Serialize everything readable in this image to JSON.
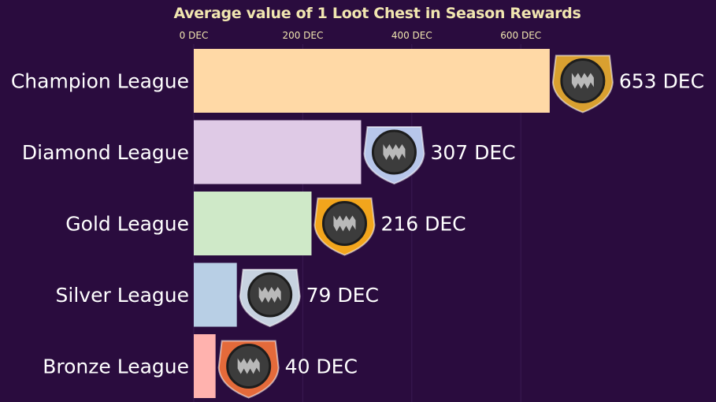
{
  "chart_data": {
    "type": "bar",
    "orientation": "horizontal",
    "title": "Average value of 1 Loot Chest in Season Rewards",
    "xlabel": "",
    "ylabel": "",
    "xlim": [
      0,
      660
    ],
    "x_ticks": [
      {
        "value": 0,
        "label": "0 DEC"
      },
      {
        "value": 200,
        "label": "200 DEC"
      },
      {
        "value": 400,
        "label": "400 DEC"
      },
      {
        "value": 600,
        "label": "600 DEC"
      }
    ],
    "grid": false,
    "legend": "none",
    "categories": [
      "Champion League",
      "Diamond League",
      "Gold League",
      "Silver League",
      "Bronze League"
    ],
    "values": [
      653,
      307,
      216,
      79,
      40
    ],
    "value_labels": [
      "653 DEC",
      "307 DEC",
      "216 DEC",
      "79 DEC",
      "40 DEC"
    ],
    "bar_colors": [
      "#ffd9a6",
      "#dfcae6",
      "#cfe9c8",
      "#b8cfe5",
      "#ffb2ae"
    ],
    "badge_icons": [
      "champion-league-badge-icon",
      "diamond-league-badge-icon",
      "gold-league-badge-icon",
      "silver-league-badge-icon",
      "bronze-league-badge-icon"
    ],
    "badge_colors": [
      "#d9a030",
      "#b7c6ea",
      "#f2a51c",
      "#c7d2e0",
      "#e46a3a"
    ]
  },
  "background_color": "#2a0c3e",
  "title_color": "#f1e6b0"
}
